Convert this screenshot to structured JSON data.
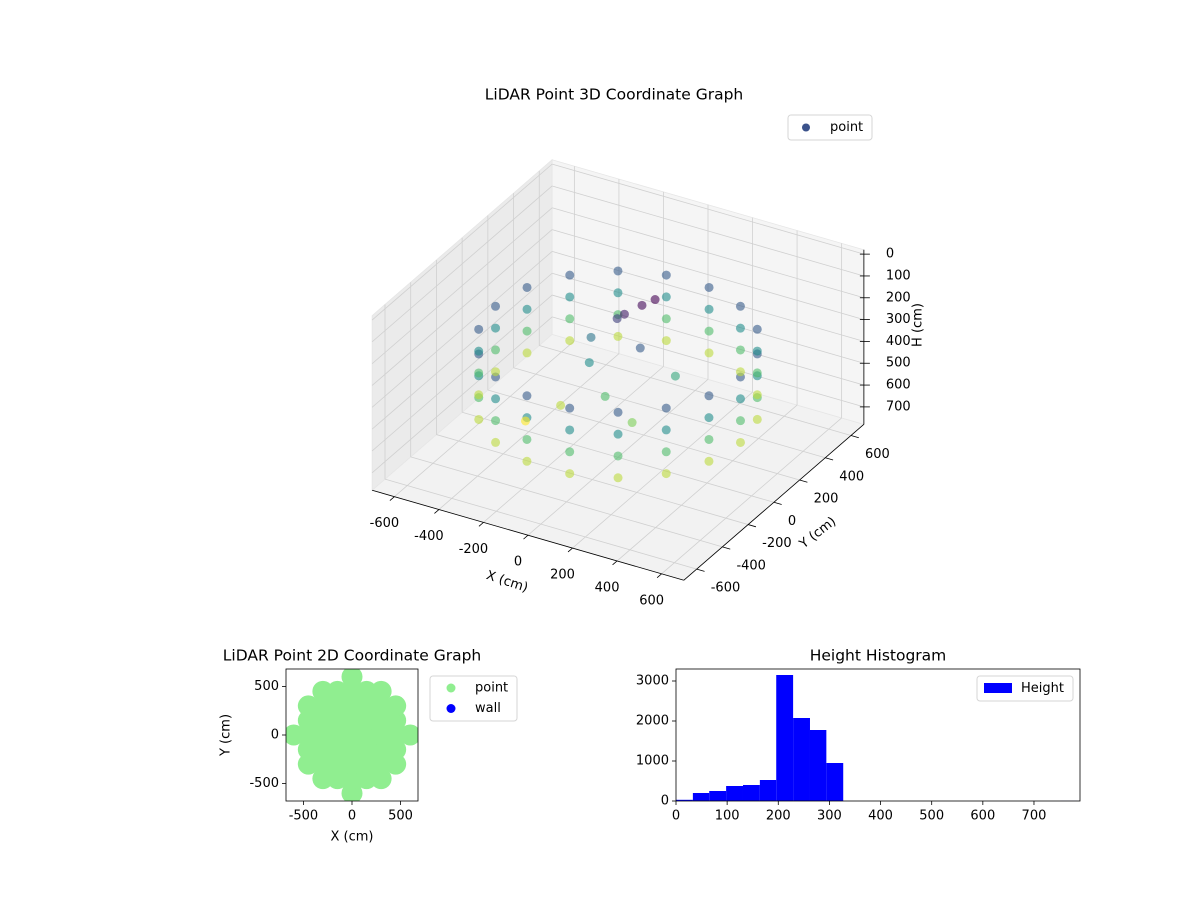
{
  "chart_data": [
    {
      "type": "scatter3d",
      "title": "LiDAR Point 3D Coordinate Graph",
      "xlabel": "X (cm)",
      "ylabel": "Y (cm)",
      "zlabel": "H (cm)",
      "xlim": [
        -700,
        700
      ],
      "ylim": [
        -700,
        700
      ],
      "zlim": [
        -20,
        780
      ],
      "z_inverted": true,
      "xticks": [
        -600,
        -400,
        -200,
        0,
        200,
        400,
        600
      ],
      "yticks": [
        -600,
        -400,
        -200,
        0,
        200,
        400,
        600
      ],
      "zticks": [
        0,
        100,
        200,
        300,
        400,
        500,
        600,
        700
      ],
      "legend": "upper right",
      "cmap": "viridis",
      "grid": true,
      "series": [
        {
          "name": "point",
          "color": "#3b528b",
          "x": [
            550,
            517,
            421,
            275,
            96,
            -96,
            -275,
            -421,
            -517,
            -550,
            -517,
            -421,
            -275,
            -96,
            96,
            275,
            421,
            517,
            550,
            517,
            421,
            275,
            96,
            -96,
            -275,
            -421,
            -517,
            -550,
            -517,
            -421,
            -275,
            -96,
            96,
            275,
            421,
            517,
            550,
            517,
            421,
            275,
            96,
            -96,
            -275,
            -421,
            -517,
            -550,
            -517,
            -421,
            -275,
            -96,
            96,
            275,
            421,
            517,
            550,
            517,
            421,
            275,
            96,
            -96,
            -275,
            -421,
            -517,
            -550,
            -517,
            -421,
            -275,
            -96,
            96,
            275,
            421,
            517,
            50,
            80,
            0,
            -50,
            100,
            -100,
            0,
            150,
            -200,
            -150,
            200,
            -300
          ],
          "y": [
            0,
            188,
            354,
            476,
            542,
            542,
            476,
            354,
            188,
            0,
            -188,
            -354,
            -476,
            -542,
            -542,
            -476,
            -354,
            -188,
            0,
            188,
            354,
            476,
            542,
            542,
            476,
            354,
            188,
            0,
            -188,
            -354,
            -476,
            -542,
            -542,
            -476,
            -354,
            -188,
            0,
            188,
            354,
            476,
            542,
            542,
            476,
            354,
            188,
            0,
            -188,
            -354,
            -476,
            -542,
            -542,
            -476,
            -354,
            -188,
            0,
            188,
            354,
            476,
            542,
            542,
            476,
            354,
            188,
            0,
            -188,
            -354,
            -476,
            -542,
            -542,
            -476,
            -354,
            -188,
            100,
            150,
            50,
            80,
            0,
            -50,
            -100,
            -150,
            -100,
            50,
            100,
            -200
          ],
          "z": [
            250,
            250,
            250,
            250,
            250,
            250,
            250,
            250,
            250,
            250,
            250,
            250,
            250,
            250,
            250,
            250,
            250,
            250,
            350,
            350,
            350,
            350,
            350,
            350,
            350,
            350,
            350,
            350,
            350,
            350,
            350,
            350,
            350,
            350,
            350,
            350,
            450,
            450,
            450,
            450,
            450,
            450,
            450,
            450,
            450,
            450,
            450,
            450,
            450,
            450,
            450,
            450,
            450,
            450,
            550,
            550,
            550,
            550,
            550,
            550,
            550,
            550,
            550,
            550,
            550,
            550,
            550,
            550,
            550,
            550,
            550,
            550,
            120,
            110,
            150,
            200,
            250,
            350,
            450,
            500,
            550,
            300,
            400,
            600
          ]
        }
      ]
    },
    {
      "type": "scatter",
      "title": "LiDAR Point 2D Coordinate Graph",
      "xlabel": "X (cm)",
      "ylabel": "Y (cm)",
      "xlim": [
        -680,
        680
      ],
      "ylim": [
        -680,
        680
      ],
      "xticks": [
        -500,
        0,
        500
      ],
      "yticks": [
        -500,
        0,
        500
      ],
      "legend": "outside right",
      "series": [
        {
          "name": "point",
          "color": "#90ee90",
          "x": [
            0,
            -300,
            -150,
            0,
            150,
            300,
            -450,
            -300,
            -150,
            0,
            150,
            300,
            450,
            -450,
            -300,
            -150,
            0,
            150,
            300,
            450,
            -600,
            -450,
            -300,
            -150,
            0,
            150,
            300,
            450,
            600,
            -450,
            -300,
            -150,
            0,
            150,
            300,
            450,
            -450,
            -300,
            -150,
            0,
            150,
            300,
            450,
            -300,
            -150,
            0,
            150,
            300,
            0
          ],
          "y": [
            -600,
            -450,
            -450,
            -450,
            -450,
            -450,
            -300,
            -300,
            -300,
            -300,
            -300,
            -300,
            -300,
            -150,
            -150,
            -150,
            -150,
            -150,
            -150,
            -150,
            0,
            0,
            0,
            0,
            0,
            0,
            0,
            0,
            0,
            150,
            150,
            150,
            150,
            150,
            150,
            150,
            300,
            300,
            300,
            300,
            300,
            300,
            300,
            450,
            450,
            450,
            450,
            450,
            600
          ]
        },
        {
          "name": "wall",
          "color": "#0000ff",
          "x": [],
          "y": []
        }
      ]
    },
    {
      "type": "histogram",
      "title": "Height Histogram",
      "name": "Height",
      "color": "#0000ff",
      "bins": [
        0,
        33,
        65,
        98,
        131,
        164,
        196,
        229,
        262,
        294,
        327,
        360,
        393,
        425,
        458,
        491,
        523,
        556,
        589,
        622,
        654,
        687,
        720,
        752,
        785
      ],
      "values": [
        30,
        200,
        250,
        375,
        400,
        525,
        3150,
        2075,
        1775,
        950,
        0,
        0,
        0,
        0,
        0,
        0,
        0,
        0,
        0,
        0,
        0,
        0,
        0,
        2
      ],
      "xlim": [
        0,
        790
      ],
      "ylim": [
        0,
        3300
      ],
      "xticks": [
        0,
        100,
        200,
        300,
        400,
        500,
        600,
        700
      ],
      "yticks": [
        0,
        1000,
        2000,
        3000
      ],
      "legend": "upper right"
    }
  ]
}
